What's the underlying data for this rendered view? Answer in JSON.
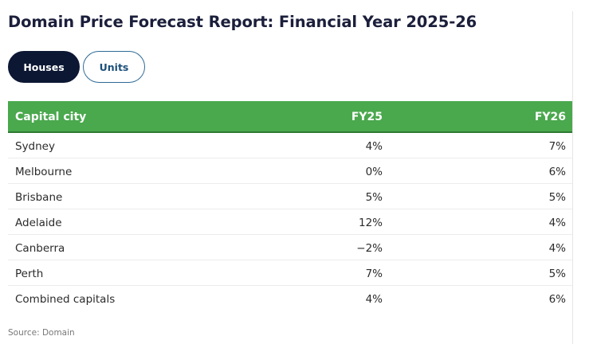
{
  "report": {
    "title": "Domain Price Forecast Report: Financial Year 2025-26",
    "source": "Source: Domain"
  },
  "tabs": [
    {
      "label": "Houses",
      "selected": true
    },
    {
      "label": "Units",
      "selected": false
    }
  ],
  "table": {
    "headers": {
      "city": "Capital city",
      "fy25": "FY25",
      "fy26": "FY26"
    },
    "rows": [
      {
        "city": "Sydney",
        "fy25": "4%",
        "fy26": "7%"
      },
      {
        "city": "Melbourne",
        "fy25": "0%",
        "fy26": "6%"
      },
      {
        "city": "Brisbane",
        "fy25": "5%",
        "fy26": "5%"
      },
      {
        "city": "Adelaide",
        "fy25": "12%",
        "fy26": "4%"
      },
      {
        "city": "Canberra",
        "fy25": "−2%",
        "fy26": "4%"
      },
      {
        "city": "Perth",
        "fy25": "7%",
        "fy26": "5%"
      },
      {
        "city": "Combined capitals",
        "fy25": "4%",
        "fy26": "6%"
      }
    ]
  },
  "colors": {
    "header_green": "#4aa84d",
    "active_tab": "#0c1733",
    "inactive_tab_border": "#2e6a96",
    "title_text": "#1b1f3b"
  }
}
